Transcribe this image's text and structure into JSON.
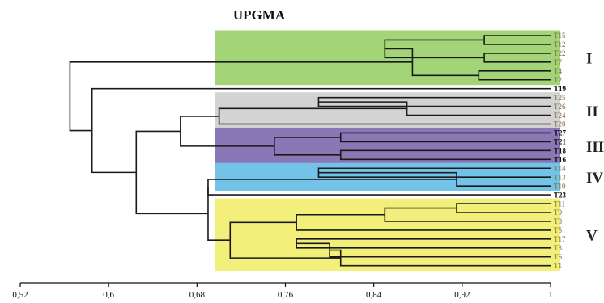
{
  "title": "UPGMA",
  "axis": {
    "min": 0.52,
    "max": 1.0,
    "ticks": [
      "0,52",
      "0,6",
      "0,68",
      "0,76",
      "0,84",
      "0,92",
      "1"
    ],
    "tick_values": [
      0.52,
      0.6,
      0.68,
      0.76,
      0.84,
      0.92,
      1.0
    ]
  },
  "leaves": [
    "T15",
    "T12",
    "T22",
    "T7",
    "T4",
    "T2",
    "T19",
    "T25",
    "T26",
    "T24",
    "T20",
    "T27",
    "T21",
    "T18",
    "T16",
    "T14",
    "T13",
    "T10",
    "T23",
    "T11",
    "T9",
    "T8",
    "T5",
    "T17",
    "T3",
    "T6",
    "T1"
  ],
  "clusters": [
    {
      "label": "I",
      "leaves": [
        "T15",
        "T12",
        "T22",
        "T7",
        "T4",
        "T2"
      ],
      "color": "#a3d477"
    },
    {
      "label": "II",
      "leaves": [
        "T25",
        "T26",
        "T24",
        "T20"
      ],
      "color": "#d3d3d3"
    },
    {
      "label": "III",
      "leaves": [
        "T27",
        "T21",
        "T18",
        "T16"
      ],
      "color": "#8a77b5"
    },
    {
      "label": "IV",
      "leaves": [
        "T14",
        "T13",
        "T10"
      ],
      "color": "#73c2e8"
    },
    {
      "label": "V",
      "leaves": [
        "T11",
        "T9",
        "T8",
        "T5",
        "T17",
        "T3",
        "T6",
        "T1"
      ],
      "color": "#f2f07a"
    }
  ],
  "unboxed_leaves": [
    "T19",
    "T23"
  ],
  "tree": [
    [
      "T15",
      "T12",
      0.94
    ],
    [
      "T22",
      "T7",
      0.94
    ],
    [
      "T4",
      "T2",
      0.935
    ],
    [
      "T12",
      "T22",
      0.85
    ],
    [
      "T7",
      "T4",
      0.875
    ],
    [
      "T22",
      "T7",
      0.83
    ],
    [
      "T12",
      "T7",
      0.78
    ],
    [
      "T25",
      "T26",
      0.79
    ],
    [
      "T26",
      "T24",
      0.87
    ],
    [
      "T25",
      "T20",
      0.7
    ],
    [
      "T27",
      "T21",
      0.81
    ],
    [
      "T18",
      "T16",
      0.81
    ],
    [
      "T21",
      "T18",
      0.75
    ],
    [
      "T14",
      "T13",
      0.79
    ],
    [
      "T13",
      "T10",
      0.915
    ],
    [
      "T11",
      "T9",
      0.915
    ],
    [
      "T9",
      "T8",
      0.85
    ],
    [
      "T8",
      "T5",
      0.77
    ],
    [
      "T17",
      "T3",
      0.77
    ],
    [
      "T3",
      "T6",
      0.8
    ],
    [
      "T6",
      "T1",
      0.81
    ],
    [
      "T5",
      "T17",
      0.71
    ],
    [
      "T20",
      "T21",
      0.665
    ],
    [
      "T13",
      "T23",
      0.69
    ],
    [
      "T23",
      "T11",
      0.69
    ],
    [
      "T10",
      "T23",
      0.67
    ],
    [
      "T20",
      "T13",
      0.625
    ],
    [
      "T19",
      "T20",
      0.585
    ],
    [
      "T2",
      "T19",
      0.565
    ]
  ],
  "colors": {
    "branch": "#1a1a1a",
    "leaf_text_light": "#7a6a3a",
    "leaf_text_dark": "#111111"
  }
}
